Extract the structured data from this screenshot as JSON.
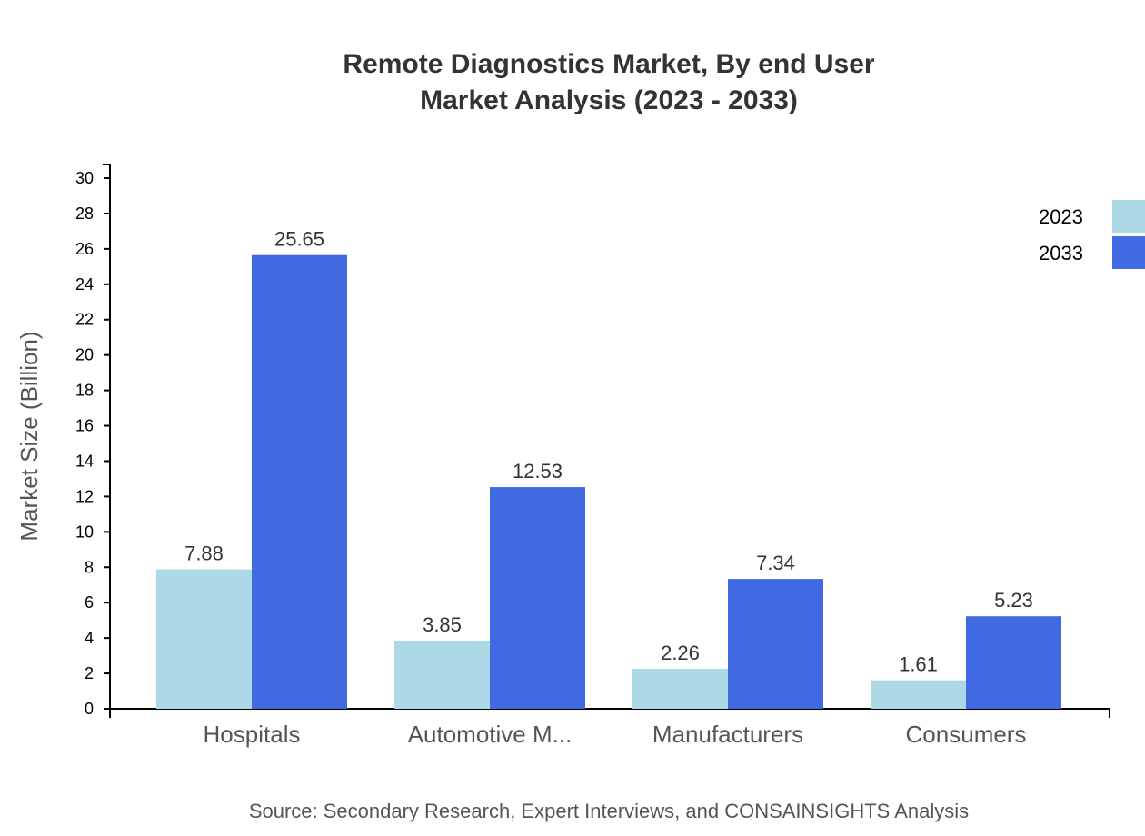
{
  "chart_data": {
    "type": "bar",
    "title": "Remote Diagnostics Market, By end User",
    "subtitle": "Market Analysis (2023 - 2033)",
    "xlabel": "",
    "ylabel": "Market Size (Billion)",
    "ylim": [
      0,
      30
    ],
    "yticks": [
      0,
      2,
      4,
      6,
      8,
      10,
      12,
      14,
      16,
      18,
      20,
      22,
      24,
      26,
      28,
      30
    ],
    "categories": [
      "Hospitals",
      "Automotive M...",
      "Manufacturers",
      "Consumers"
    ],
    "series": [
      {
        "name": "2023",
        "color": "#ADD8E6",
        "values": [
          7.88,
          3.85,
          2.26,
          1.61
        ]
      },
      {
        "name": "2033",
        "color": "#4169E1",
        "values": [
          25.65,
          12.53,
          7.34,
          5.23
        ]
      }
    ],
    "grid": false,
    "legend_position": "top-right",
    "source": "Source: Secondary Research, Expert Interviews, and CONSAINSIGHTS Analysis"
  }
}
